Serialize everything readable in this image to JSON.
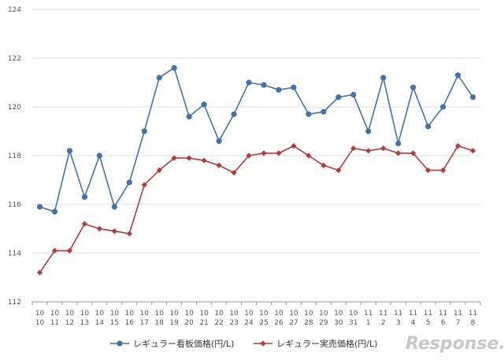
{
  "chart_data": {
    "type": "line",
    "categories": [
      [
        "10",
        "10"
      ],
      [
        "10",
        "11"
      ],
      [
        "10",
        "12"
      ],
      [
        "10",
        "13"
      ],
      [
        "10",
        "14"
      ],
      [
        "10",
        "15"
      ],
      [
        "10",
        "16"
      ],
      [
        "10",
        "17"
      ],
      [
        "10",
        "18"
      ],
      [
        "10",
        "19"
      ],
      [
        "10",
        "20"
      ],
      [
        "10",
        "21"
      ],
      [
        "10",
        "22"
      ],
      [
        "10",
        "23"
      ],
      [
        "10",
        "24"
      ],
      [
        "10",
        "25"
      ],
      [
        "10",
        "26"
      ],
      [
        "10",
        "27"
      ],
      [
        "10",
        "28"
      ],
      [
        "10",
        "29"
      ],
      [
        "10",
        "30"
      ],
      [
        "10",
        "31"
      ],
      [
        "11",
        "1"
      ],
      [
        "11",
        "2"
      ],
      [
        "11",
        "3"
      ],
      [
        "11",
        "4"
      ],
      [
        "11",
        "5"
      ],
      [
        "11",
        "6"
      ],
      [
        "11",
        "7"
      ],
      [
        "11",
        "8"
      ]
    ],
    "series": [
      {
        "name": "レギュラー看板価格(円/L)",
        "color": "#4472a8",
        "marker": "circle",
        "values": [
          115.9,
          115.7,
          118.2,
          116.3,
          118.0,
          115.9,
          116.9,
          119.0,
          121.2,
          121.6,
          119.6,
          120.1,
          118.6,
          119.7,
          121.0,
          120.9,
          120.7,
          120.8,
          119.7,
          119.8,
          120.4,
          120.5,
          119.0,
          121.2,
          118.5,
          120.8,
          119.2,
          120.0,
          121.3,
          120.4
        ]
      },
      {
        "name": "レギュラー実売価格(円/L)",
        "color": "#b23b3b",
        "marker": "diamond",
        "values": [
          113.2,
          114.1,
          114.1,
          115.2,
          115.0,
          114.9,
          114.8,
          116.8,
          117.4,
          117.9,
          117.9,
          117.8,
          117.6,
          117.3,
          118.0,
          118.1,
          118.1,
          118.4,
          118.0,
          117.6,
          117.4,
          118.3,
          118.2,
          118.3,
          118.1,
          118.1,
          117.4,
          117.4,
          118.4,
          118.2
        ]
      }
    ],
    "ylim": [
      112,
      124
    ],
    "yticks": [
      112,
      114,
      116,
      118,
      120,
      122,
      124
    ],
    "grid": true,
    "legend_position": "bottom"
  },
  "watermark": "Response."
}
